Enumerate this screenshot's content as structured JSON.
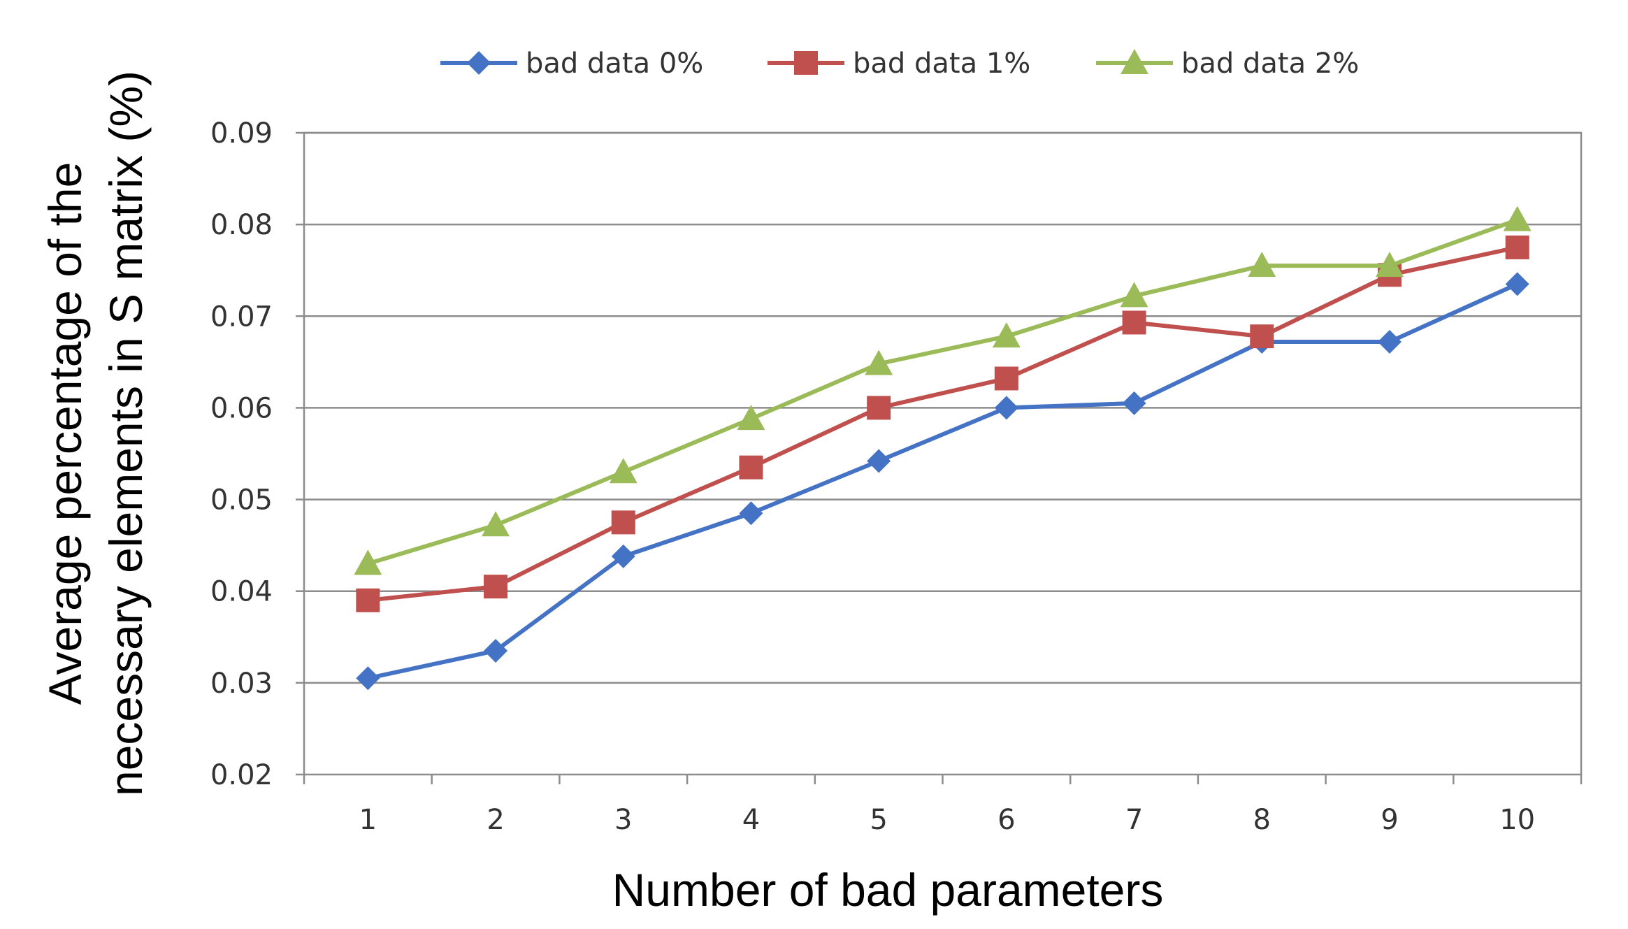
{
  "chart_data": {
    "type": "line",
    "title": "",
    "xlabel": "Number of bad parameters",
    "ylabel_line1": "Average percentage of the",
    "ylabel_line2": "necessary elements in S matrix (%)",
    "categories": [
      "1",
      "2",
      "3",
      "4",
      "5",
      "6",
      "7",
      "8",
      "9",
      "10"
    ],
    "y_ticks": [
      "0.02",
      "0.03",
      "0.04",
      "0.05",
      "0.06",
      "0.07",
      "0.08",
      "0.09"
    ],
    "ylim": [
      0.02,
      0.09
    ],
    "grid": true,
    "legend_position": "top",
    "series": [
      {
        "name": "bad data 0%",
        "color": "#4472C4",
        "marker": "diamond",
        "values": [
          0.0305,
          0.0335,
          0.0438,
          0.0485,
          0.0542,
          0.06,
          0.0605,
          0.0672,
          0.0672,
          0.0735
        ]
      },
      {
        "name": "bad data 1%",
        "color": "#C0504D",
        "marker": "square",
        "values": [
          0.039,
          0.0405,
          0.0475,
          0.0535,
          0.06,
          0.0632,
          0.0693,
          0.0678,
          0.0745,
          0.0775
        ]
      },
      {
        "name": "bad data 2%",
        "color": "#9BBB59",
        "marker": "triangle",
        "values": [
          0.043,
          0.0472,
          0.053,
          0.0588,
          0.0648,
          0.0678,
          0.0722,
          0.0755,
          0.0755,
          0.0805
        ]
      }
    ]
  }
}
